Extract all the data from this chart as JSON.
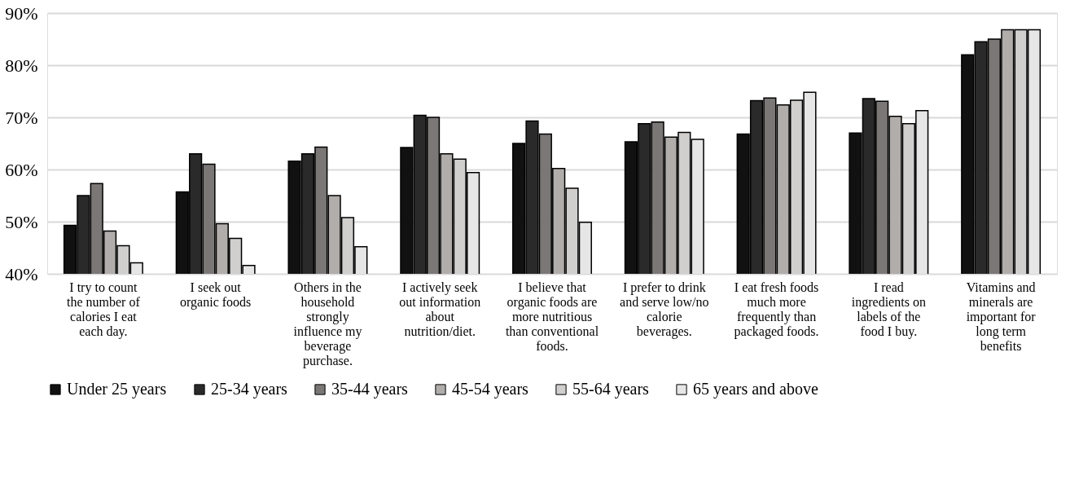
{
  "chart_data": {
    "type": "bar",
    "categories": [
      "I try to count the number of calories I eat each day.",
      "I seek out organic foods",
      "Others in the household strongly influence my beverage purchase.",
      "I actively seek out information about nutrition/diet.",
      "I believe that organic foods are more nutritious than conventional foods.",
      "I prefer to drink and serve low/no calorie beverages.",
      "I eat fresh foods much more frequently than packaged foods.",
      "I read ingredients on labels of the food I buy.",
      "Vitamins and minerals are important for long term benefits"
    ],
    "series": [
      {
        "name": "Under 25 years",
        "color": "#111111",
        "values": [
          49.3,
          55.7,
          61.6,
          64.2,
          65.0,
          65.3,
          66.8,
          67.0,
          82.0
        ]
      },
      {
        "name": "25-34 years",
        "color": "#2a2a2a",
        "values": [
          55.0,
          63.0,
          63.0,
          70.4,
          69.3,
          68.8,
          73.2,
          73.6,
          84.5
        ]
      },
      {
        "name": "35-44 years",
        "color": "#7a7776",
        "values": [
          57.3,
          61.0,
          64.3,
          70.0,
          66.8,
          69.1,
          73.7,
          73.1,
          85.0
        ]
      },
      {
        "name": "45-54 years",
        "color": "#b0adab",
        "values": [
          48.2,
          49.6,
          55.0,
          63.0,
          60.2,
          66.2,
          72.4,
          70.2,
          86.8
        ]
      },
      {
        "name": "55-64 years",
        "color": "#d0cfce",
        "values": [
          45.4,
          46.8,
          50.8,
          62.0,
          56.4,
          67.1,
          73.3,
          68.8,
          86.8
        ]
      },
      {
        "name": "65 years and above",
        "color": "#e6e6e6",
        "values": [
          42.1,
          41.6,
          45.2,
          59.4,
          49.9,
          65.8,
          74.8,
          71.3,
          86.8
        ]
      }
    ],
    "ylim": [
      40,
      90
    ],
    "yticks": [
      {
        "value": 40,
        "label": "40%"
      },
      {
        "value": 50,
        "label": "50%"
      },
      {
        "value": 60,
        "label": "60%"
      },
      {
        "value": 70,
        "label": "70%"
      },
      {
        "value": 80,
        "label": "80%"
      },
      {
        "value": 90,
        "label": "90%"
      }
    ],
    "grid": "y",
    "legend": "bottom"
  }
}
